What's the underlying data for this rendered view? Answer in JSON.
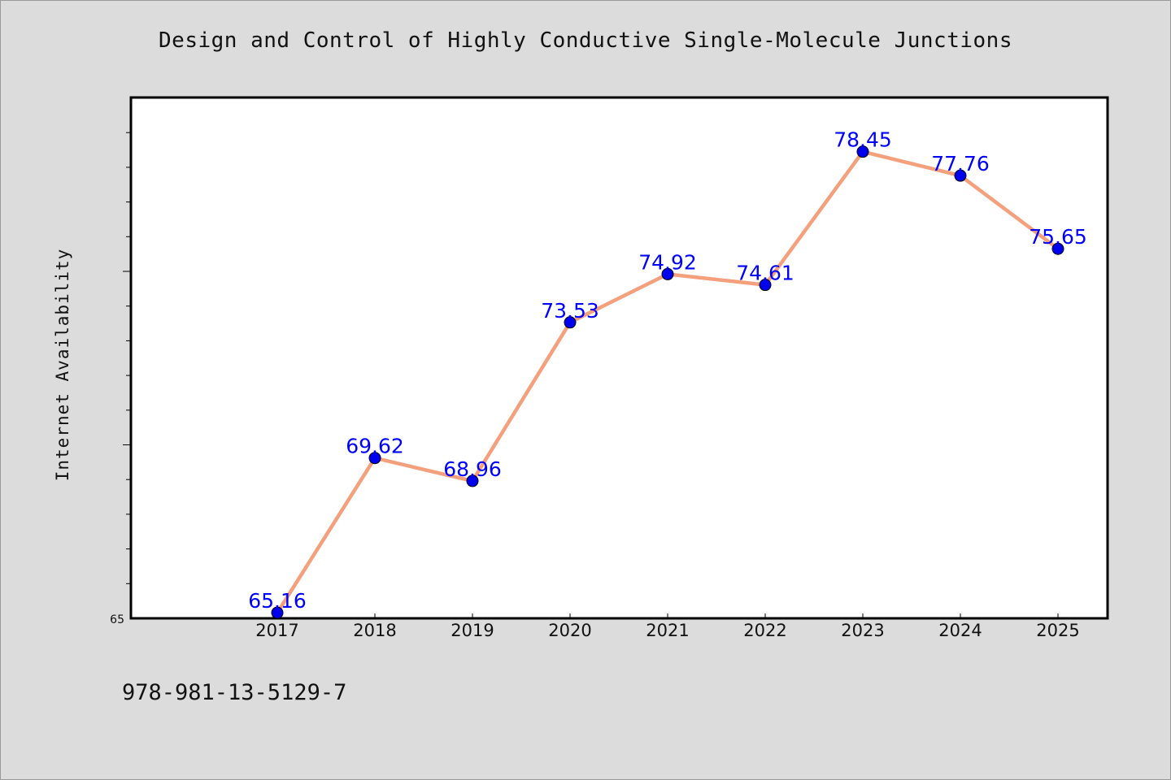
{
  "chart_data": {
    "type": "line",
    "title": "Design and Control of Highly Conductive Single-Molecule Junctions",
    "xlabel": "",
    "ylabel": "Internet Availability",
    "categories": [
      "2017",
      "2018",
      "2019",
      "2020",
      "2021",
      "2022",
      "2023",
      "2024",
      "2025"
    ],
    "series": [
      {
        "values": [
          65.16,
          69.62,
          68.96,
          73.53,
          74.92,
          74.61,
          78.45,
          77.76,
          75.65
        ],
        "labels": [
          "65.16",
          "69.62",
          "68.96",
          "73.53",
          "74.92",
          "74.61",
          "78.45",
          "77.76",
          "75.65"
        ]
      }
    ],
    "ylim": [
      65,
      80
    ],
    "y_tick_labels": [
      "65"
    ],
    "grid": false,
    "legend": "none",
    "colors": {
      "line": "#f4a07c",
      "marker": "#0000ee",
      "data_label": "#0000ff",
      "plot_background": "#ffffff",
      "page_background": "#dcdcdc"
    }
  },
  "footnote": "978-981-13-5129-7"
}
